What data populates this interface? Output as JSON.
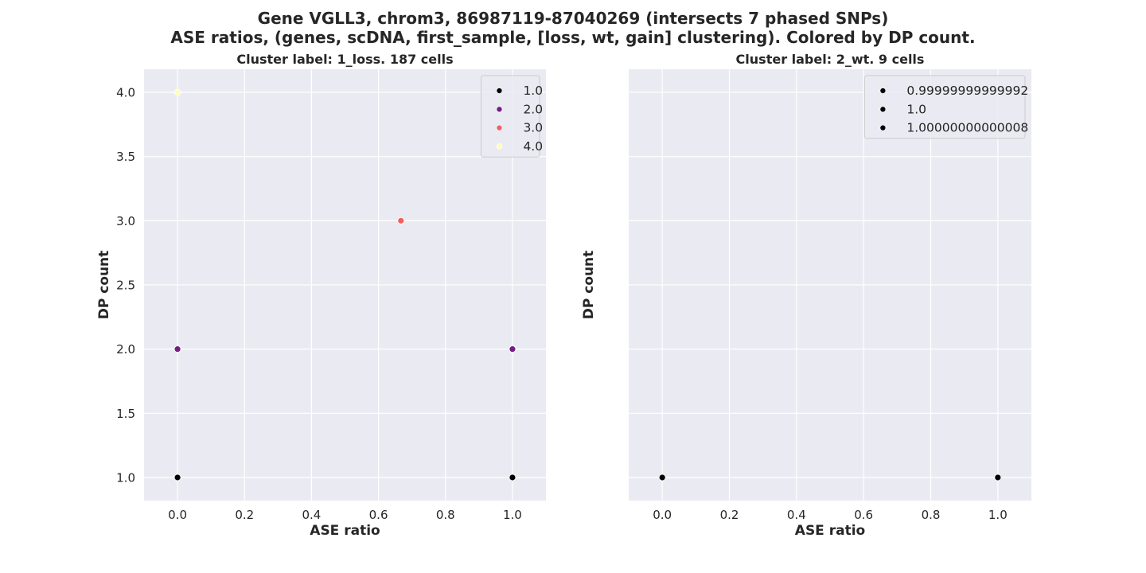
{
  "figure": {
    "title_line1": "Gene VGLL3, chrom3, 86987119-87040269 (intersects 7 phased SNPs)",
    "title_line2": "ASE ratios, (genes, scDNA, first_sample, [loss, wt, gain] clustering). Colored by DP count."
  },
  "colors": {
    "axes_bg": "#eaeaf2",
    "grid": "#ffffff",
    "text": "#262626"
  },
  "chart_data": [
    {
      "type": "scatter",
      "title": "Cluster label: 1_loss. 187 cells",
      "xlabel": "ASE ratio",
      "ylabel": "DP count",
      "xlim": [
        -0.1,
        1.1
      ],
      "ylim": [
        0.82,
        4.18
      ],
      "xticks": [
        "0.0",
        "0.2",
        "0.4",
        "0.6",
        "0.8",
        "1.0"
      ],
      "yticks": [
        "1.0",
        "1.5",
        "2.0",
        "2.5",
        "3.0",
        "3.5",
        "4.0"
      ],
      "grid": true,
      "legend_position": "top-right",
      "legend": [
        {
          "label": "1.0",
          "color": "#000004"
        },
        {
          "label": "2.0",
          "color": "#721f81"
        },
        {
          "label": "3.0",
          "color": "#f1605d"
        },
        {
          "label": "4.0",
          "color": "#fcfdbf"
        }
      ],
      "points": [
        {
          "x": 0.0,
          "y": 1.0,
          "color": "#000004"
        },
        {
          "x": 1.0,
          "y": 1.0,
          "color": "#000004"
        },
        {
          "x": 0.0,
          "y": 2.0,
          "color": "#721f81"
        },
        {
          "x": 1.0,
          "y": 2.0,
          "color": "#721f81"
        },
        {
          "x": 0.667,
          "y": 3.0,
          "color": "#f1605d"
        },
        {
          "x": 0.0,
          "y": 4.0,
          "color": "#fcfdbf"
        }
      ]
    },
    {
      "type": "scatter",
      "title": "Cluster label: 2_wt. 9 cells",
      "xlabel": "ASE ratio",
      "ylabel": "DP count",
      "xlim": [
        -0.1,
        1.1
      ],
      "ylim": [
        0.82,
        4.18
      ],
      "xticks": [
        "0.0",
        "0.2",
        "0.4",
        "0.6",
        "0.8",
        "1.0"
      ],
      "yticks": [],
      "grid": true,
      "legend_position": "top-right",
      "legend": [
        {
          "label": "0.99999999999992",
          "color": "#000004"
        },
        {
          "label": "1.0",
          "color": "#000004"
        },
        {
          "label": "1.00000000000008",
          "color": "#000004"
        }
      ],
      "points": [
        {
          "x": 0.0,
          "y": 1.0,
          "color": "#000004"
        },
        {
          "x": 1.0,
          "y": 1.0,
          "color": "#000004"
        }
      ]
    }
  ]
}
